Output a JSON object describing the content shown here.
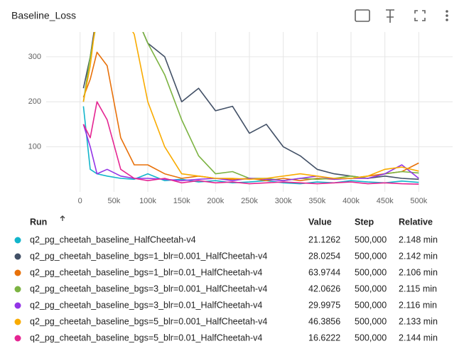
{
  "chart_data": {
    "type": "line",
    "title": "Baseline_Loss",
    "x": [
      5000,
      15000,
      25000,
      40000,
      60000,
      80000,
      100000,
      125000,
      150000,
      175000,
      200000,
      225000,
      250000,
      275000,
      300000,
      325000,
      350000,
      375000,
      400000,
      425000,
      450000,
      475000,
      500000
    ],
    "xlim": [
      -50000,
      550000
    ],
    "xticks": [
      0,
      {
        "value": 50000,
        "label": "50k"
      },
      {
        "value": 100000,
        "label": "100k"
      },
      {
        "value": 150000,
        "label": "150k"
      },
      {
        "value": 200000,
        "label": "200k"
      },
      {
        "value": 250000,
        "label": "250k"
      },
      {
        "value": 300000,
        "label": "300k"
      },
      {
        "value": 350000,
        "label": "350k"
      },
      {
        "value": 400000,
        "label": "400k"
      },
      {
        "value": 450000,
        "label": "450k"
      },
      {
        "value": 500000,
        "label": "500k"
      }
    ],
    "ylim": [
      0,
      355
    ],
    "yticks": [
      100,
      200,
      300
    ],
    "grid": true,
    "series": [
      {
        "color": "#12b5cb",
        "values": [
          190,
          50,
          40,
          35,
          30,
          28,
          40,
          25,
          28,
          22,
          25,
          20,
          22,
          25,
          20,
          18,
          22,
          20,
          25,
          22,
          20,
          24,
          21
        ]
      },
      {
        "color": "#425066",
        "values": [
          230,
          300,
          400,
          500,
          500,
          400,
          330,
          300,
          200,
          230,
          180,
          190,
          130,
          150,
          100,
          80,
          50,
          40,
          35,
          30,
          35,
          30,
          28
        ]
      },
      {
        "color": "#e8710a",
        "values": [
          210,
          250,
          310,
          280,
          120,
          60,
          60,
          40,
          30,
          35,
          30,
          28,
          30,
          25,
          30,
          25,
          30,
          28,
          30,
          35,
          40,
          45,
          64
        ]
      },
      {
        "color": "#7cb342",
        "values": [
          200,
          300,
          380,
          450,
          450,
          400,
          330,
          260,
          160,
          80,
          40,
          45,
          30,
          30,
          25,
          30,
          28,
          30,
          35,
          30,
          40,
          45,
          42
        ]
      },
      {
        "color": "#9334e6",
        "values": [
          150,
          100,
          40,
          50,
          35,
          30,
          30,
          28,
          25,
          28,
          30,
          25,
          30,
          28,
          25,
          30,
          35,
          28,
          30,
          30,
          40,
          60,
          30
        ]
      },
      {
        "color": "#f9ab00",
        "values": [
          200,
          280,
          400,
          450,
          400,
          350,
          200,
          100,
          40,
          35,
          30,
          30,
          28,
          30,
          35,
          40,
          35,
          30,
          30,
          35,
          50,
          55,
          46
        ]
      },
      {
        "color": "#e52592",
        "values": [
          150,
          120,
          200,
          160,
          50,
          30,
          25,
          30,
          20,
          25,
          20,
          22,
          18,
          20,
          22,
          20,
          18,
          20,
          22,
          18,
          20,
          18,
          17
        ]
      }
    ]
  },
  "table": {
    "columns": [
      "Run",
      "Value",
      "Step",
      "Relative"
    ],
    "rows": [
      [
        "q2_pg_cheetah_baseline_HalfCheetah-v4",
        "21.1262",
        "500,000",
        "2.148 min"
      ],
      [
        "q2_pg_cheetah_baseline_bgs=1_blr=0.001_HalfCheetah-v4",
        "28.0254",
        "500,000",
        "2.142 min"
      ],
      [
        "q2_pg_cheetah_baseline_bgs=1_blr=0.01_HalfCheetah-v4",
        "63.9744",
        "500,000",
        "2.106 min"
      ],
      [
        "q2_pg_cheetah_baseline_bgs=3_blr=0.001_HalfCheetah-v4",
        "42.0626",
        "500,000",
        "2.115 min"
      ],
      [
        "q2_pg_cheetah_baseline_bgs=3_blr=0.01_HalfCheetah-v4",
        "29.9975",
        "500,000",
        "2.116 min"
      ],
      [
        "q2_pg_cheetah_baseline_bgs=5_blr=0.001_HalfCheetah-v4",
        "46.3856",
        "500,000",
        "2.133 min"
      ],
      [
        "q2_pg_cheetah_baseline_bgs=5_blr=0.01_HalfCheetah-v4",
        "16.6222",
        "500,000",
        "2.144 min"
      ]
    ]
  }
}
